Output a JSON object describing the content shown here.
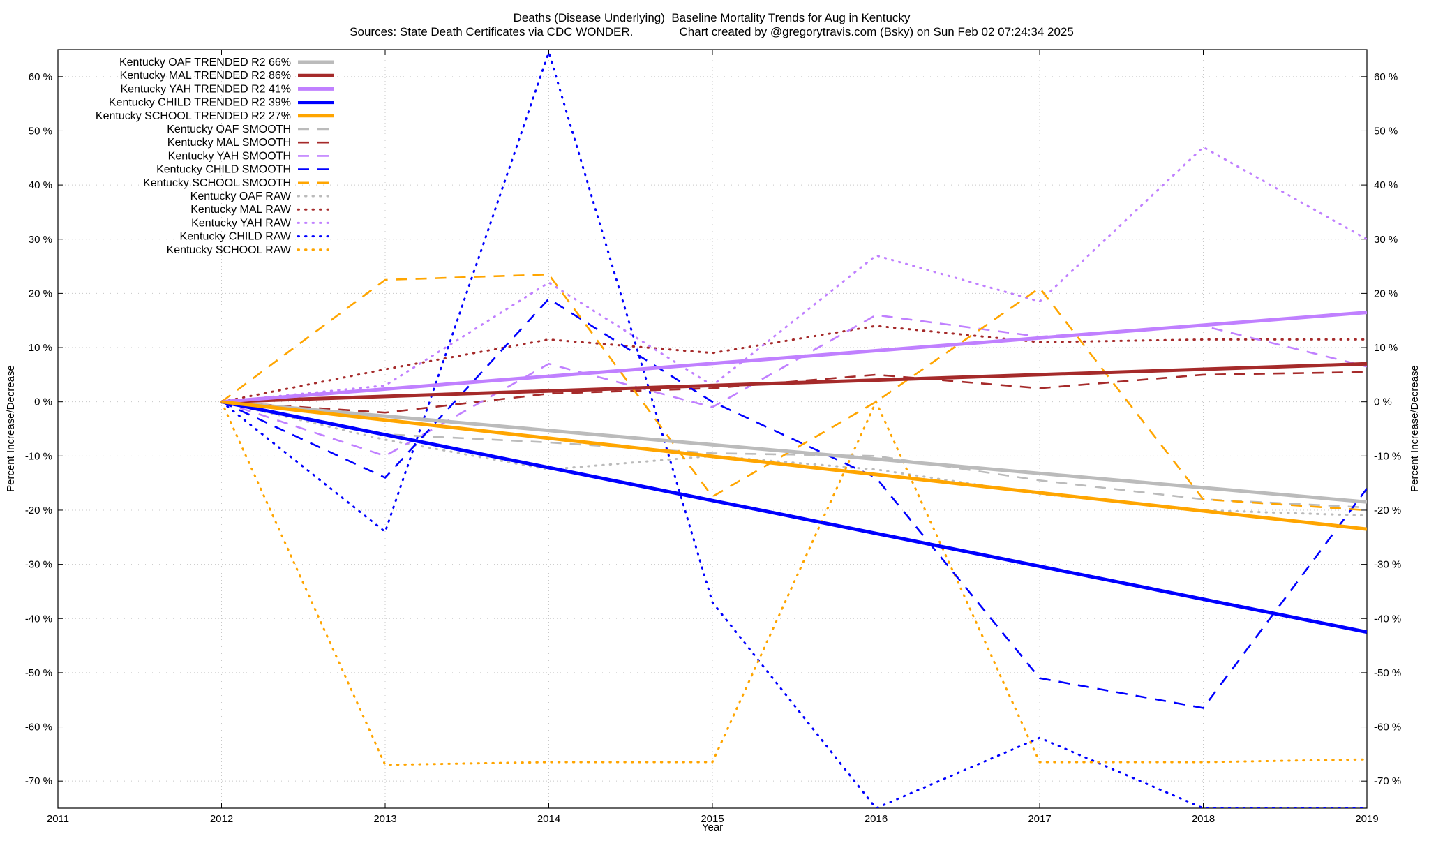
{
  "chart_data": {
    "type": "line",
    "title": "Deaths (Disease Underlying)  Baseline Mortality Trends for Aug in Kentucky",
    "subtitle": "Sources: State Death Certificates via CDC WONDER.              Chart created by @gregorytravis.com (Bsky) on Sun Feb 02 07:24:34 2025",
    "xlabel": "Year",
    "ylabel": "Percent Increase/Decrease",
    "xlim": [
      2011,
      2019
    ],
    "ylim": [
      -75,
      65
    ],
    "x_ticks": [
      2011,
      2012,
      2013,
      2014,
      2015,
      2016,
      2017,
      2018,
      2019
    ],
    "y_ticks": [
      60,
      50,
      40,
      30,
      20,
      10,
      0,
      -10,
      -20,
      -30,
      -40,
      -50,
      -60,
      -70
    ],
    "y_tick_suffix": " %",
    "grid": true,
    "legend_position": "top-left",
    "series": [
      {
        "name": "Kentucky OAF TRENDED R2  66%",
        "color": "#bbbbbb",
        "style": "solid",
        "x": [
          2012,
          2019
        ],
        "values": [
          0,
          -18.5
        ]
      },
      {
        "name": "Kentucky MAL TRENDED R2  86%",
        "color": "#a52a2a",
        "style": "solid",
        "x": [
          2012,
          2019
        ],
        "values": [
          0,
          7
        ]
      },
      {
        "name": "Kentucky YAH TRENDED R2  41%",
        "color": "#c080ff",
        "style": "solid",
        "x": [
          2012,
          2019
        ],
        "values": [
          0,
          16.5
        ]
      },
      {
        "name": "Kentucky CHILD TRENDED R2  39%",
        "color": "#0000ff",
        "style": "solid",
        "x": [
          2012,
          2019
        ],
        "values": [
          0,
          -42.5
        ]
      },
      {
        "name": "Kentucky SCHOOL TRENDED R2  27%",
        "color": "#ffa500",
        "style": "solid",
        "x": [
          2012,
          2019
        ],
        "values": [
          0,
          -23.5
        ]
      },
      {
        "name": "Kentucky OAF SMOOTH",
        "color": "#bbbbbb",
        "style": "dashed",
        "x": [
          2012,
          2013,
          2014,
          2015,
          2016,
          2017,
          2018,
          2019
        ],
        "values": [
          0,
          -6,
          -7.5,
          -9.5,
          -10,
          -14.5,
          -18,
          -19.5
        ]
      },
      {
        "name": "Kentucky MAL SMOOTH",
        "color": "#a52a2a",
        "style": "dashed",
        "x": [
          2012,
          2013,
          2014,
          2015,
          2016,
          2017,
          2018,
          2019
        ],
        "values": [
          0,
          -2,
          1.5,
          2.5,
          5,
          2.5,
          5,
          5.5
        ]
      },
      {
        "name": "Kentucky YAH SMOOTH",
        "color": "#c080ff",
        "style": "dashed",
        "x": [
          2012,
          2013,
          2014,
          2015,
          2016,
          2017,
          2018,
          2019
        ],
        "values": [
          0,
          -10,
          7,
          -1,
          16,
          12,
          14,
          6.5
        ]
      },
      {
        "name": "Kentucky CHILD SMOOTH",
        "color": "#0000ff",
        "style": "dashed",
        "x": [
          2012,
          2013,
          2014,
          2015,
          2016,
          2017,
          2018,
          2019
        ],
        "values": [
          0,
          -14,
          19,
          0,
          -14,
          -51,
          -56.5,
          -16
        ]
      },
      {
        "name": "Kentucky SCHOOL SMOOTH",
        "color": "#ffa500",
        "style": "dashed",
        "x": [
          2012,
          2013,
          2014,
          2015,
          2016,
          2017,
          2018,
          2019
        ],
        "values": [
          0,
          22.5,
          23.5,
          -17.5,
          0,
          21,
          -18,
          -20
        ]
      },
      {
        "name": "Kentucky OAF RAW",
        "color": "#bbbbbb",
        "style": "dotted",
        "x": [
          2012,
          2013,
          2014,
          2015,
          2016,
          2017,
          2018,
          2019
        ],
        "values": [
          0,
          -7,
          -12.5,
          -10,
          -12.5,
          -17,
          -20,
          -21
        ]
      },
      {
        "name": "Kentucky MAL RAW",
        "color": "#a52a2a",
        "style": "dotted",
        "x": [
          2012,
          2013,
          2014,
          2015,
          2016,
          2017,
          2018,
          2019
        ],
        "values": [
          0,
          6,
          11.5,
          9,
          14,
          11,
          11.5,
          11.5
        ]
      },
      {
        "name": "Kentucky YAH RAW",
        "color": "#c080ff",
        "style": "dotted",
        "x": [
          2012,
          2013,
          2014,
          2015,
          2016,
          2017,
          2018,
          2019
        ],
        "values": [
          0,
          3,
          22,
          3,
          27,
          18.5,
          47,
          30
        ]
      },
      {
        "name": "Kentucky CHILD RAW",
        "color": "#0000ff",
        "style": "dotted",
        "x": [
          2012,
          2013,
          2014,
          2015,
          2016,
          2017,
          2018,
          2019
        ],
        "values": [
          0,
          -24,
          64.5,
          -37,
          -75,
          -62,
          -75,
          -75
        ]
      },
      {
        "name": "Kentucky SCHOOL RAW",
        "color": "#ffa500",
        "style": "dotted",
        "x": [
          2012,
          2013,
          2014,
          2015,
          2016,
          2017,
          2018,
          2019
        ],
        "values": [
          0,
          -67,
          -66.5,
          -66.5,
          0,
          -66.5,
          -66.5,
          -66
        ]
      }
    ]
  }
}
